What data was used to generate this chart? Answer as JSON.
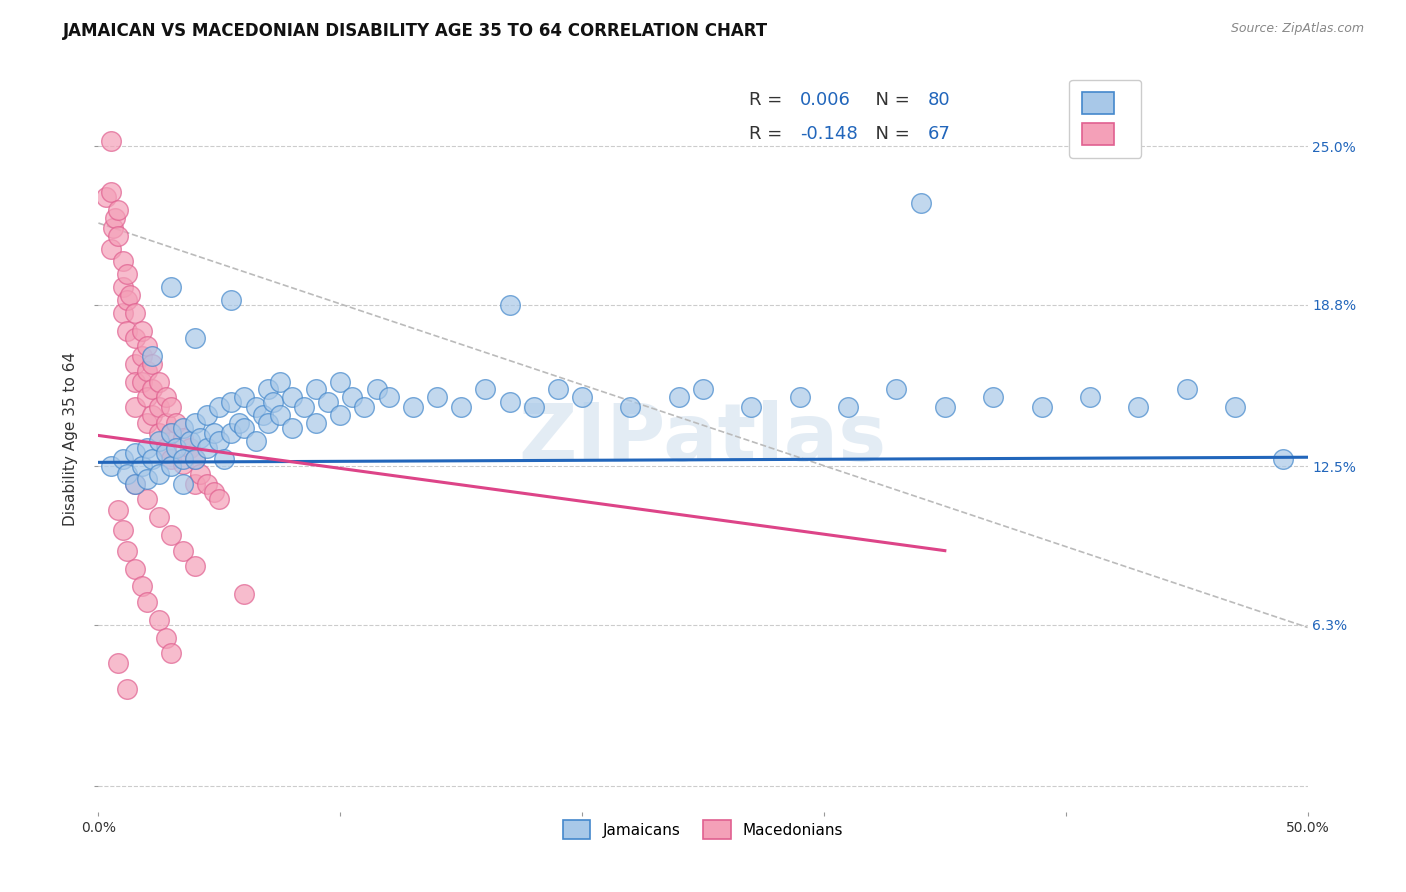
{
  "title": "JAMAICAN VS MACEDONIAN DISABILITY AGE 35 TO 64 CORRELATION CHART",
  "source": "Source: ZipAtlas.com",
  "ylabel": "Disability Age 35 to 64",
  "xlim": [
    0.0,
    0.5
  ],
  "ylim": [
    -0.01,
    0.281
  ],
  "xticks": [
    0.0,
    0.1,
    0.2,
    0.3,
    0.4,
    0.5
  ],
  "xtick_labels": [
    "0.0%",
    "",
    "",
    "",
    "",
    "50.0%"
  ],
  "ytick_vals": [
    0.0,
    0.063,
    0.125,
    0.188,
    0.25
  ],
  "ytick_labels": [
    "",
    "6.3%",
    "12.5%",
    "18.8%",
    "25.0%"
  ],
  "watermark": "ZIPatlas",
  "legend_r1": "R = ",
  "legend_r1_val": "0.006",
  "legend_n1": "  N = ",
  "legend_n1_val": "80",
  "legend_r2": "R = ",
  "legend_r2_val": "-0.148",
  "legend_n2": "  N = ",
  "legend_n2_val": "67",
  "blue_color": "#a8c8e8",
  "pink_color": "#f4a0b8",
  "blue_edge_color": "#4488cc",
  "pink_edge_color": "#e06090",
  "blue_line_color": "#2266bb",
  "pink_line_color": "#dd4488",
  "blue_scatter": [
    [
      0.005,
      0.125
    ],
    [
      0.01,
      0.128
    ],
    [
      0.012,
      0.122
    ],
    [
      0.015,
      0.13
    ],
    [
      0.015,
      0.118
    ],
    [
      0.018,
      0.125
    ],
    [
      0.02,
      0.132
    ],
    [
      0.02,
      0.12
    ],
    [
      0.022,
      0.128
    ],
    [
      0.025,
      0.135
    ],
    [
      0.025,
      0.122
    ],
    [
      0.028,
      0.13
    ],
    [
      0.03,
      0.138
    ],
    [
      0.03,
      0.125
    ],
    [
      0.032,
      0.132
    ],
    [
      0.035,
      0.14
    ],
    [
      0.035,
      0.128
    ],
    [
      0.035,
      0.118
    ],
    [
      0.038,
      0.135
    ],
    [
      0.04,
      0.142
    ],
    [
      0.04,
      0.128
    ],
    [
      0.042,
      0.136
    ],
    [
      0.045,
      0.145
    ],
    [
      0.045,
      0.132
    ],
    [
      0.048,
      0.138
    ],
    [
      0.05,
      0.148
    ],
    [
      0.05,
      0.135
    ],
    [
      0.052,
      0.128
    ],
    [
      0.055,
      0.15
    ],
    [
      0.055,
      0.138
    ],
    [
      0.058,
      0.142
    ],
    [
      0.06,
      0.152
    ],
    [
      0.06,
      0.14
    ],
    [
      0.065,
      0.148
    ],
    [
      0.065,
      0.135
    ],
    [
      0.068,
      0.145
    ],
    [
      0.07,
      0.155
    ],
    [
      0.07,
      0.142
    ],
    [
      0.072,
      0.15
    ],
    [
      0.075,
      0.158
    ],
    [
      0.075,
      0.145
    ],
    [
      0.08,
      0.152
    ],
    [
      0.08,
      0.14
    ],
    [
      0.085,
      0.148
    ],
    [
      0.09,
      0.155
    ],
    [
      0.09,
      0.142
    ],
    [
      0.095,
      0.15
    ],
    [
      0.1,
      0.158
    ],
    [
      0.1,
      0.145
    ],
    [
      0.105,
      0.152
    ],
    [
      0.11,
      0.148
    ],
    [
      0.115,
      0.155
    ],
    [
      0.12,
      0.152
    ],
    [
      0.13,
      0.148
    ],
    [
      0.14,
      0.152
    ],
    [
      0.15,
      0.148
    ],
    [
      0.16,
      0.155
    ],
    [
      0.17,
      0.15
    ],
    [
      0.18,
      0.148
    ],
    [
      0.19,
      0.155
    ],
    [
      0.2,
      0.152
    ],
    [
      0.22,
      0.148
    ],
    [
      0.24,
      0.152
    ],
    [
      0.25,
      0.155
    ],
    [
      0.27,
      0.148
    ],
    [
      0.29,
      0.152
    ],
    [
      0.31,
      0.148
    ],
    [
      0.33,
      0.155
    ],
    [
      0.35,
      0.148
    ],
    [
      0.37,
      0.152
    ],
    [
      0.39,
      0.148
    ],
    [
      0.41,
      0.152
    ],
    [
      0.43,
      0.148
    ],
    [
      0.45,
      0.155
    ],
    [
      0.47,
      0.148
    ],
    [
      0.49,
      0.128
    ],
    [
      0.03,
      0.195
    ],
    [
      0.055,
      0.19
    ],
    [
      0.04,
      0.175
    ],
    [
      0.022,
      0.168
    ],
    [
      0.17,
      0.188
    ],
    [
      0.34,
      0.228
    ]
  ],
  "pink_scatter": [
    [
      0.003,
      0.23
    ],
    [
      0.005,
      0.232
    ],
    [
      0.006,
      0.218
    ],
    [
      0.005,
      0.21
    ],
    [
      0.007,
      0.222
    ],
    [
      0.008,
      0.215
    ],
    [
      0.008,
      0.225
    ],
    [
      0.01,
      0.205
    ],
    [
      0.01,
      0.195
    ],
    [
      0.01,
      0.185
    ],
    [
      0.012,
      0.2
    ],
    [
      0.012,
      0.19
    ],
    [
      0.012,
      0.178
    ],
    [
      0.013,
      0.192
    ],
    [
      0.015,
      0.185
    ],
    [
      0.015,
      0.175
    ],
    [
      0.015,
      0.165
    ],
    [
      0.015,
      0.158
    ],
    [
      0.015,
      0.148
    ],
    [
      0.018,
      0.178
    ],
    [
      0.018,
      0.168
    ],
    [
      0.018,
      0.158
    ],
    [
      0.02,
      0.172
    ],
    [
      0.02,
      0.162
    ],
    [
      0.02,
      0.152
    ],
    [
      0.02,
      0.142
    ],
    [
      0.022,
      0.165
    ],
    [
      0.022,
      0.155
    ],
    [
      0.022,
      0.145
    ],
    [
      0.025,
      0.158
    ],
    [
      0.025,
      0.148
    ],
    [
      0.025,
      0.138
    ],
    [
      0.028,
      0.152
    ],
    [
      0.028,
      0.142
    ],
    [
      0.028,
      0.132
    ],
    [
      0.03,
      0.148
    ],
    [
      0.03,
      0.138
    ],
    [
      0.03,
      0.128
    ],
    [
      0.032,
      0.142
    ],
    [
      0.035,
      0.136
    ],
    [
      0.035,
      0.126
    ],
    [
      0.038,
      0.132
    ],
    [
      0.04,
      0.128
    ],
    [
      0.04,
      0.118
    ],
    [
      0.042,
      0.122
    ],
    [
      0.045,
      0.118
    ],
    [
      0.048,
      0.115
    ],
    [
      0.05,
      0.112
    ],
    [
      0.01,
      0.1
    ],
    [
      0.012,
      0.092
    ],
    [
      0.015,
      0.085
    ],
    [
      0.018,
      0.078
    ],
    [
      0.02,
      0.072
    ],
    [
      0.025,
      0.065
    ],
    [
      0.028,
      0.058
    ],
    [
      0.03,
      0.052
    ],
    [
      0.008,
      0.108
    ],
    [
      0.015,
      0.118
    ],
    [
      0.02,
      0.112
    ],
    [
      0.025,
      0.105
    ],
    [
      0.03,
      0.098
    ],
    [
      0.035,
      0.092
    ],
    [
      0.04,
      0.086
    ],
    [
      0.005,
      0.252
    ],
    [
      0.008,
      0.048
    ],
    [
      0.012,
      0.038
    ],
    [
      0.06,
      0.075
    ]
  ],
  "blue_regression": [
    0.0,
    0.1265,
    0.5,
    0.1285
  ],
  "pink_regression": [
    0.0,
    0.137,
    0.35,
    0.092
  ],
  "dashed_line": [
    0.0,
    0.22,
    0.5,
    0.062
  ],
  "grid_color": "#cccccc",
  "bg_color": "#ffffff",
  "title_fontsize": 12,
  "axis_label_fontsize": 11,
  "tick_fontsize": 10,
  "right_tick_color": "#2266bb",
  "value_color": "#2266bb"
}
